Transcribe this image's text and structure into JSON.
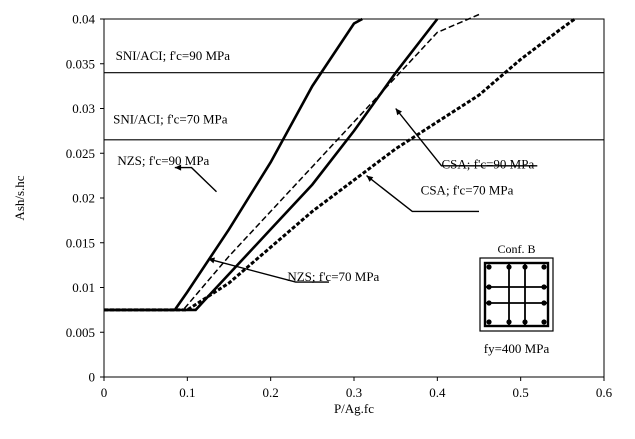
{
  "chart_data": {
    "type": "line",
    "xlabel": "P/Ag.fc",
    "ylabel": "Ash/s.hc",
    "xlim": [
      0,
      0.6
    ],
    "ylim": [
      0,
      0.04
    ],
    "x_ticks": [
      "0",
      "0.1",
      "0.2",
      "0.3",
      "0.4",
      "0.5",
      "0.6"
    ],
    "y_ticks": [
      "0",
      "0.005",
      "0.01",
      "0.015",
      "0.02",
      "0.025",
      "0.03",
      "0.035",
      "0.04"
    ],
    "grid": false,
    "series": [
      {
        "name": "NZS; f'c=90 MPa",
        "style": "solid-thick",
        "x": [
          0.0,
          0.085,
          0.1,
          0.15,
          0.2,
          0.25,
          0.3,
          0.31
        ],
        "y": [
          0.0075,
          0.0075,
          0.0095,
          0.0165,
          0.024,
          0.0325,
          0.0395,
          0.04
        ]
      },
      {
        "name": "NZS; f'c=70 MPa",
        "style": "solid-thick",
        "x": [
          0.0,
          0.11,
          0.12,
          0.2,
          0.25,
          0.3,
          0.35,
          0.4
        ],
        "y": [
          0.0075,
          0.0075,
          0.0085,
          0.0165,
          0.0215,
          0.0275,
          0.034,
          0.04
        ]
      },
      {
        "name": "CSA; f'c=90 MPa",
        "style": "dashed-thin",
        "x": [
          0.0,
          0.095,
          0.15,
          0.2,
          0.25,
          0.3,
          0.35,
          0.4,
          0.45
        ],
        "y": [
          0.0075,
          0.0075,
          0.0135,
          0.0185,
          0.0235,
          0.0285,
          0.0335,
          0.0385,
          0.0405
        ]
      },
      {
        "name": "CSA; f'c=70 MPa",
        "style": "dashed-thick",
        "x": [
          0.0,
          0.1,
          0.15,
          0.2,
          0.25,
          0.3,
          0.35,
          0.4,
          0.45,
          0.5,
          0.55,
          0.565
        ],
        "y": [
          0.0075,
          0.0075,
          0.0105,
          0.0145,
          0.0185,
          0.022,
          0.0255,
          0.0285,
          0.0315,
          0.0355,
          0.039,
          0.04
        ]
      },
      {
        "name": "SNI/ACI; f'c=90 MPa",
        "style": "hline",
        "x": [
          0.0,
          0.6
        ],
        "y": [
          0.034,
          0.034
        ]
      },
      {
        "name": "SNI/ACI; f'c=70 MPa",
        "style": "hline",
        "x": [
          0.0,
          0.6
        ],
        "y": [
          0.0265,
          0.0265
        ]
      }
    ],
    "annotations": [
      {
        "text": "SNI/ACI; f'c=90 MPa",
        "x": 0.014,
        "y": 0.0354
      },
      {
        "text": "SNI/ACI; f'c=70 MPa",
        "x": 0.011,
        "y": 0.0283
      },
      {
        "text": "NZS; f'c=90 MPa",
        "x": 0.016,
        "y": 0.0237,
        "line": [
          [
            0.085,
            0.0234
          ],
          [
            0.105,
            0.0234
          ],
          [
            0.135,
            0.0207
          ]
        ]
      },
      {
        "text": "NZS; f'c=70 MPa",
        "x": 0.22,
        "y": 0.0107,
        "line": [
          [
            0.125,
            0.0132
          ],
          [
            0.23,
            0.0106
          ],
          [
            0.27,
            0.0106
          ]
        ]
      },
      {
        "text": "CSA; f'c=90 MPa",
        "x": 0.405,
        "y": 0.0233,
        "line": [
          [
            0.35,
            0.03
          ],
          [
            0.405,
            0.0236
          ],
          [
            0.52,
            0.0236
          ]
        ]
      },
      {
        "text": "CSA; f'c=70 MPa",
        "x": 0.38,
        "y": 0.0204,
        "line": [
          [
            0.315,
            0.0225
          ],
          [
            0.37,
            0.0185
          ],
          [
            0.45,
            0.0185
          ]
        ]
      }
    ],
    "inset": {
      "title": "Conf. B",
      "label": "fy=400 MPa"
    }
  }
}
